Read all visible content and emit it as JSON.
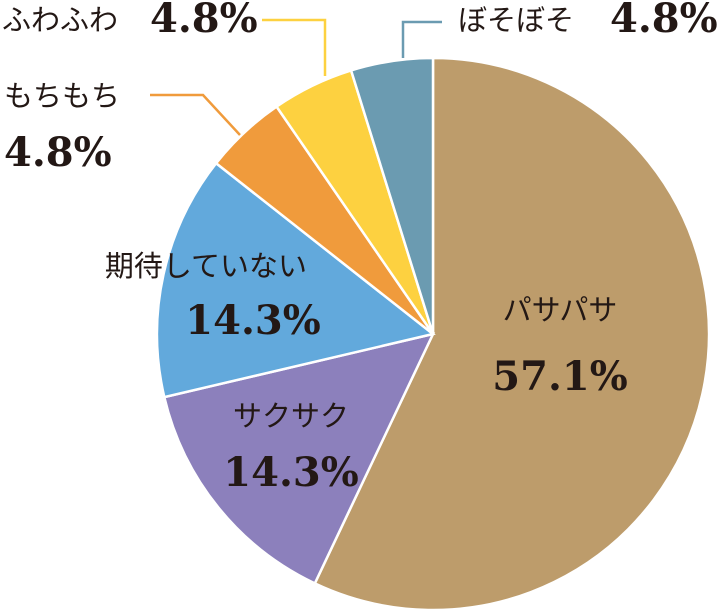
{
  "chart_data": {
    "type": "pie",
    "categories": [
      "パサパサ",
      "サクサク",
      "期待していない",
      "もちもち",
      "ふわふわ",
      "ぼそぼそ"
    ],
    "values": [
      57.1,
      14.3,
      14.3,
      4.8,
      4.8,
      4.8
    ],
    "value_labels": [
      "57.1%",
      "14.3%",
      "14.3%",
      "4.8%",
      "4.8%",
      "4.8%"
    ],
    "colors": [
      "#bd9c6b",
      "#8c80bc",
      "#62a9dc",
      "#f09b3c",
      "#fdd140",
      "#6b9bb1"
    ]
  }
}
